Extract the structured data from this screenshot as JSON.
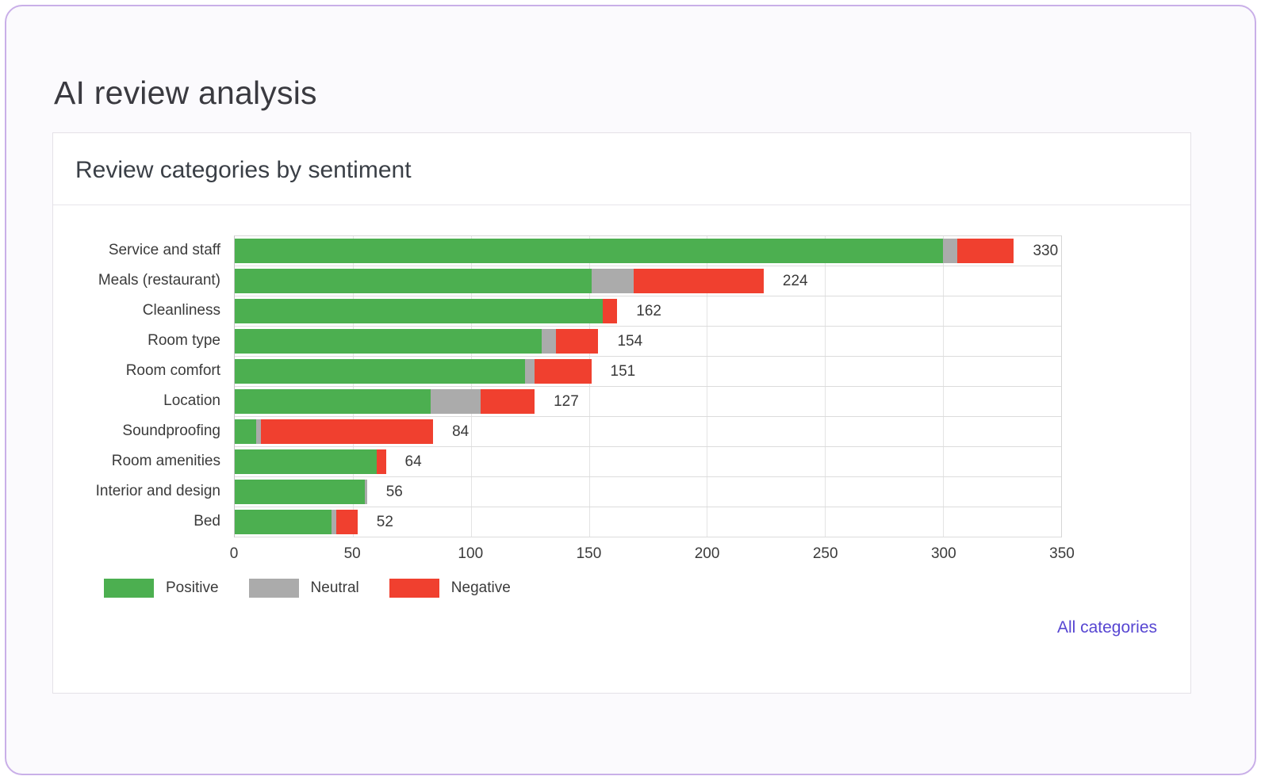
{
  "page": {
    "title": "AI review analysis"
  },
  "card": {
    "title": "Review categories by sentiment",
    "link_label": "All categories"
  },
  "chart_data": {
    "type": "bar",
    "orientation": "horizontal",
    "stacked": true,
    "title": "Review categories by sentiment",
    "categories": [
      "Service and staff",
      "Meals (restaurant)",
      "Cleanliness",
      "Room type",
      "Room comfort",
      "Location",
      "Soundproofing",
      "Room amenities",
      "Interior and design",
      "Bed"
    ],
    "series": [
      {
        "name": "Positive",
        "color": "#4caf50",
        "values": [
          300,
          151,
          156,
          130,
          123,
          83,
          9,
          60,
          55,
          41
        ]
      },
      {
        "name": "Neutral",
        "color": "#ababab",
        "values": [
          6,
          18,
          0,
          6,
          4,
          21,
          2,
          0,
          1,
          2
        ]
      },
      {
        "name": "Negative",
        "color": "#f0402f",
        "values": [
          24,
          55,
          6,
          18,
          24,
          23,
          73,
          4,
          0,
          9
        ]
      }
    ],
    "totals": [
      330,
      224,
      162,
      154,
      151,
      127,
      84,
      64,
      56,
      52
    ],
    "xlabel": "",
    "ylabel": "",
    "xlim": [
      0,
      350
    ],
    "xticks": [
      0,
      50,
      100,
      150,
      200,
      250,
      300,
      350
    ],
    "grid": true,
    "legend_position": "bottom-left"
  },
  "colors": {
    "positive": "#4caf50",
    "neutral": "#ababab",
    "negative": "#f0402f",
    "link": "#5746d2",
    "frame_border": "#c9afe8"
  }
}
